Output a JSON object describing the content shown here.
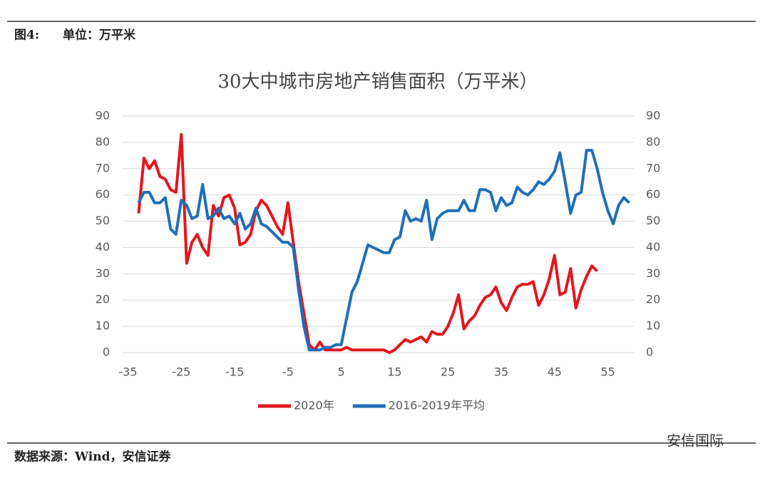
{
  "header": {
    "figure": "图4:",
    "unit": "单位：万平米"
  },
  "footer": {
    "source": "数据来源：Wind，安信证券",
    "watermark": "安信国际"
  },
  "chart_data": {
    "type": "line",
    "title": "30大中城市房地产销售面积（万平米）",
    "xlim": [
      -36,
      60
    ],
    "xticks": [
      -35,
      -25,
      -15,
      -5,
      5,
      15,
      25,
      35,
      45,
      55
    ],
    "ylim": [
      0,
      90
    ],
    "yticks": [
      0,
      10,
      20,
      30,
      40,
      50,
      60,
      70,
      80,
      90
    ],
    "y2lim": [
      0,
      90
    ],
    "y2ticks": [
      0,
      10,
      20,
      30,
      40,
      50,
      60,
      70,
      80,
      90
    ],
    "grid": true,
    "legend": "bottom",
    "series": [
      {
        "name": "2020年",
        "color": "#e3161e",
        "x": [
          -33,
          -32,
          -31,
          -30,
          -29,
          -28,
          -27,
          -26,
          -25,
          -24,
          -23,
          -22,
          -21,
          -20,
          -19,
          -18,
          -17,
          -16,
          -15,
          -14,
          -13,
          -12,
          -11,
          -10,
          -9,
          -8,
          -7,
          -6,
          -5,
          -4,
          -3,
          -2,
          -1,
          0,
          1,
          2,
          3,
          4,
          5,
          6,
          7,
          8,
          9,
          10,
          11,
          12,
          13,
          14,
          15,
          16,
          17,
          18,
          19,
          20,
          21,
          22,
          23,
          24,
          25,
          26,
          27,
          28,
          29,
          30,
          31,
          32,
          33,
          34,
          35,
          36,
          37,
          38,
          39,
          40,
          41,
          42,
          43,
          44,
          45,
          46,
          47,
          48,
          49,
          50,
          51,
          52,
          53
        ],
        "values": [
          53,
          74,
          70,
          73,
          67,
          66,
          62,
          61,
          83,
          34,
          42,
          45,
          40,
          37,
          56,
          52,
          59,
          60,
          55,
          41,
          42,
          45,
          54,
          58,
          56,
          52,
          48,
          45,
          57,
          42,
          27,
          15,
          3,
          1,
          4,
          1,
          1,
          1,
          1,
          2,
          1,
          1,
          1,
          1,
          1,
          1,
          1,
          0,
          1,
          3,
          5,
          4,
          5,
          6,
          4,
          8,
          7,
          7,
          10,
          15,
          22,
          9,
          12,
          14,
          18,
          21,
          22,
          25,
          19,
          16,
          21,
          25,
          26,
          26,
          27,
          18,
          22,
          28,
          37,
          22,
          23,
          32,
          17,
          24,
          29,
          33,
          31
        ]
      },
      {
        "name": "2016-2019年平均",
        "color": "#1f6fb8",
        "x": [
          -33,
          -32,
          -31,
          -30,
          -29,
          -28,
          -27,
          -26,
          -25,
          -24,
          -23,
          -22,
          -21,
          -20,
          -19,
          -18,
          -17,
          -16,
          -15,
          -14,
          -13,
          -12,
          -11,
          -10,
          -9,
          -8,
          -7,
          -6,
          -5,
          -4,
          -3,
          -2,
          -1,
          0,
          1,
          2,
          3,
          4,
          5,
          6,
          7,
          8,
          9,
          10,
          11,
          12,
          13,
          14,
          15,
          16,
          17,
          18,
          19,
          20,
          21,
          22,
          23,
          24,
          25,
          26,
          27,
          28,
          29,
          30,
          31,
          32,
          33,
          34,
          35,
          36,
          37,
          38,
          39,
          40,
          41,
          42,
          43,
          44,
          45,
          46,
          47,
          48,
          49,
          50,
          51,
          52,
          53,
          54,
          55,
          56,
          57,
          58,
          59
        ],
        "values": [
          57,
          61,
          61,
          57,
          57,
          59,
          47,
          45,
          58,
          56,
          51,
          52,
          64,
          51,
          52,
          55,
          51,
          52,
          49,
          53,
          47,
          49,
          55,
          49,
          48,
          46,
          44,
          42,
          42,
          40,
          24,
          10,
          1,
          1,
          1,
          2,
          2,
          3,
          3,
          13,
          23,
          27,
          34,
          41,
          40,
          39,
          38,
          38,
          43,
          44,
          54,
          50,
          51,
          50,
          58,
          43,
          51,
          53,
          54,
          54,
          54,
          58,
          54,
          54,
          62,
          62,
          61,
          54,
          59,
          56,
          57,
          63,
          61,
          60,
          62,
          65,
          64,
          66,
          69,
          76,
          65,
          53,
          60,
          61,
          77,
          77,
          70,
          61,
          54,
          49,
          56,
          59,
          57
        ]
      }
    ]
  }
}
